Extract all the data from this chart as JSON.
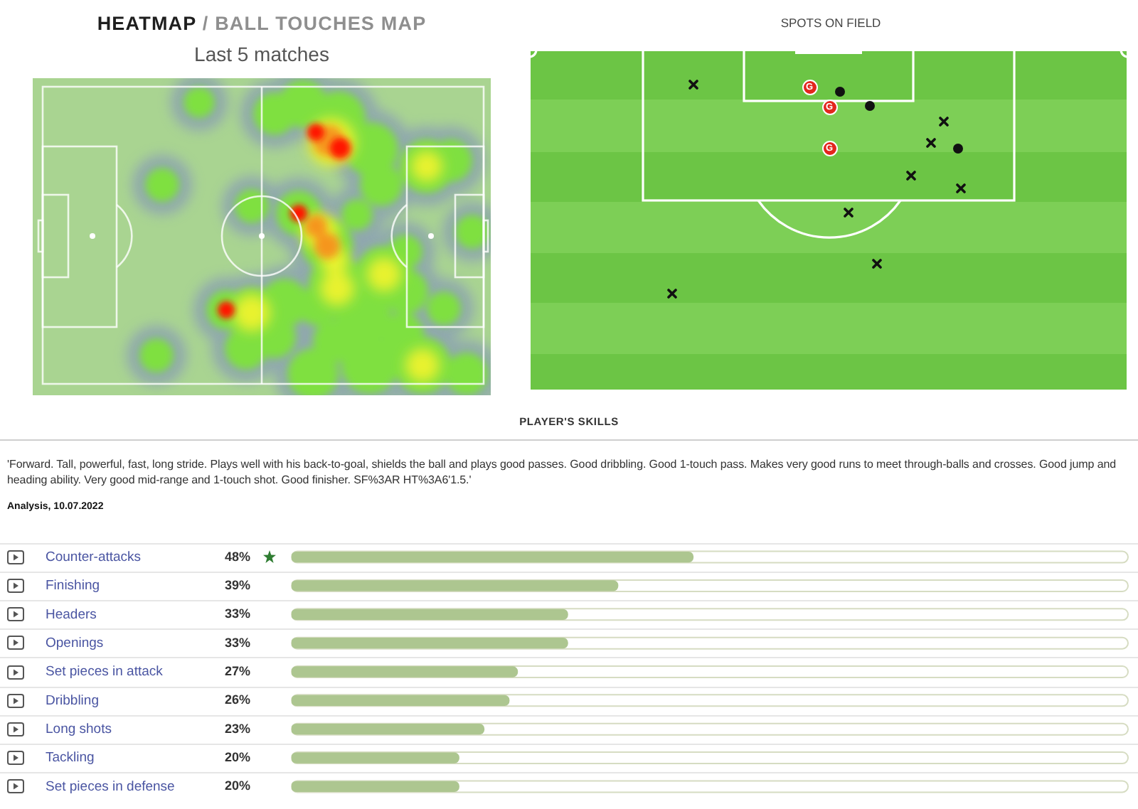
{
  "chart_data": [
    {
      "type": "other",
      "title": "HEATMAP / BALL TOUCHES MAP",
      "subtitle": "Last 5 matches"
    },
    {
      "type": "other",
      "title": "SPOTS ON FIELD",
      "annotations": [
        "G",
        "G",
        "G"
      ]
    },
    {
      "type": "bar",
      "orientation": "horizontal",
      "title": "PLAYER'S SKILLS",
      "categories": [
        "Counter-attacks",
        "Finishing",
        "Headers",
        "Openings",
        "Set pieces in attack",
        "Dribbling",
        "Long shots",
        "Tackling",
        "Set pieces in defense"
      ],
      "values": [
        48,
        39,
        33,
        33,
        27,
        26,
        23,
        20,
        20
      ],
      "value_labels": [
        "48%",
        "39%",
        "33%",
        "33%",
        "27%",
        "26%",
        "23%",
        "20%",
        "20%"
      ],
      "color": "#adc690",
      "xlim": [
        0,
        100
      ],
      "tick_labels": "y",
      "grid": "y",
      "annotations": [
        "'Forward. Tall, powerful, fast, long stride. Plays well with his back-to-goal, shields the ball and plays good passes. Good dribbling. Good 1-touch pass. Makes very good runs to meet through-balls and crosses. Good jump and heading ability. Very good mid-range and 1-touch shot. Good finisher. SF%3AR HT%3A6'1.5.'",
        "Analysis, 10.07.2022"
      ]
    }
  ]
}
